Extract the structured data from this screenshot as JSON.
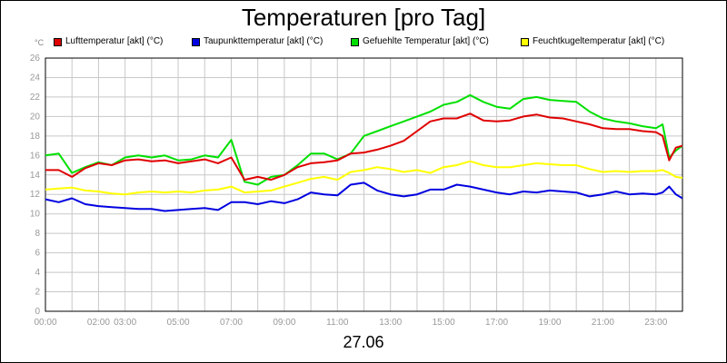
{
  "chart_data": {
    "type": "line",
    "title": "Temperaturen [pro Tag]",
    "xlabel": "27.06",
    "y_unit": "°C",
    "ylim": [
      0,
      26
    ],
    "yticks": [
      0,
      2,
      4,
      6,
      8,
      10,
      12,
      14,
      16,
      18,
      20,
      22,
      24,
      26
    ],
    "xlim_hours": [
      0,
      24
    ],
    "xticks": [
      "00:00",
      "02:00",
      "03:00",
      "05:00",
      "07:00",
      "09:00",
      "11:00",
      "13:00",
      "15:00",
      "17:00",
      "19:00",
      "21:00",
      "23:00"
    ],
    "xtick_hours": [
      0,
      2,
      3,
      5,
      7,
      9,
      11,
      13,
      15,
      17,
      19,
      21,
      23
    ],
    "grid": true,
    "legend_position": "top",
    "x": [
      0,
      0.5,
      1,
      1.5,
      2,
      2.5,
      3,
      3.5,
      4,
      4.5,
      5,
      5.5,
      6,
      6.5,
      7,
      7.5,
      8,
      8.5,
      9,
      9.5,
      10,
      10.5,
      11,
      11.5,
      12,
      12.5,
      13,
      13.5,
      14,
      14.5,
      15,
      15.5,
      16,
      16.5,
      17,
      17.5,
      18,
      18.5,
      19,
      19.5,
      20,
      20.5,
      21,
      21.5,
      22,
      22.5,
      23,
      23.25,
      23.5,
      23.75,
      24
    ],
    "series": [
      {
        "name": "Lufttemperatur [akt] (°C)",
        "color": "#e00000",
        "values": [
          14.5,
          14.5,
          13.8,
          14.7,
          15.2,
          15.0,
          15.5,
          15.6,
          15.4,
          15.5,
          15.2,
          15.4,
          15.6,
          15.2,
          15.8,
          13.5,
          13.8,
          13.5,
          14.0,
          14.8,
          15.2,
          15.3,
          15.5,
          16.2,
          16.3,
          16.6,
          17.0,
          17.5,
          18.5,
          19.5,
          19.8,
          19.8,
          20.3,
          19.6,
          19.5,
          19.6,
          20.0,
          20.2,
          19.9,
          19.8,
          19.5,
          19.2,
          18.8,
          18.7,
          18.7,
          18.5,
          18.4,
          18.0,
          15.5,
          16.8,
          17.0
        ]
      },
      {
        "name": "Taupunkttemperatur [akt] (°C)",
        "color": "#0000e0",
        "values": [
          11.5,
          11.2,
          11.6,
          11.0,
          10.8,
          10.7,
          10.6,
          10.5,
          10.5,
          10.3,
          10.4,
          10.5,
          10.6,
          10.4,
          11.2,
          11.2,
          11.0,
          11.3,
          11.1,
          11.5,
          12.2,
          12.0,
          11.9,
          13.0,
          13.2,
          12.4,
          12.0,
          11.8,
          12.0,
          12.5,
          12.5,
          13.0,
          12.8,
          12.5,
          12.2,
          12.0,
          12.3,
          12.2,
          12.4,
          12.3,
          12.2,
          11.8,
          12.0,
          12.3,
          12.0,
          12.1,
          12.0,
          12.2,
          12.8,
          12.0,
          11.6
        ]
      },
      {
        "name": "Gefuehlte Temperatur [akt] (°C)",
        "color": "#00e000",
        "values": [
          16.0,
          16.2,
          14.2,
          14.8,
          15.3,
          15.0,
          15.8,
          16.0,
          15.8,
          16.0,
          15.5,
          15.6,
          16.0,
          15.8,
          17.6,
          13.3,
          13.0,
          13.8,
          14.0,
          15.0,
          16.2,
          16.2,
          15.6,
          16.2,
          18.0,
          18.5,
          19.0,
          19.5,
          20.0,
          20.5,
          21.2,
          21.5,
          22.2,
          21.5,
          21.0,
          20.8,
          21.8,
          22.0,
          21.7,
          21.6,
          21.5,
          20.5,
          19.8,
          19.5,
          19.3,
          19.0,
          18.8,
          19.2,
          15.8,
          16.5,
          17.0
        ]
      },
      {
        "name": "Feuchtkugeltemperatur [akt] (°C)",
        "color": "#ffff00",
        "values": [
          12.5,
          12.6,
          12.7,
          12.4,
          12.3,
          12.1,
          12.0,
          12.2,
          12.3,
          12.2,
          12.3,
          12.2,
          12.4,
          12.5,
          12.8,
          12.2,
          12.3,
          12.4,
          12.8,
          13.2,
          13.6,
          13.8,
          13.5,
          14.3,
          14.5,
          14.8,
          14.6,
          14.3,
          14.5,
          14.2,
          14.8,
          15.0,
          15.4,
          15.0,
          14.8,
          14.8,
          15.0,
          15.2,
          15.1,
          15.0,
          15.0,
          14.6,
          14.3,
          14.4,
          14.3,
          14.4,
          14.4,
          14.5,
          14.2,
          13.8,
          13.7
        ]
      }
    ]
  }
}
